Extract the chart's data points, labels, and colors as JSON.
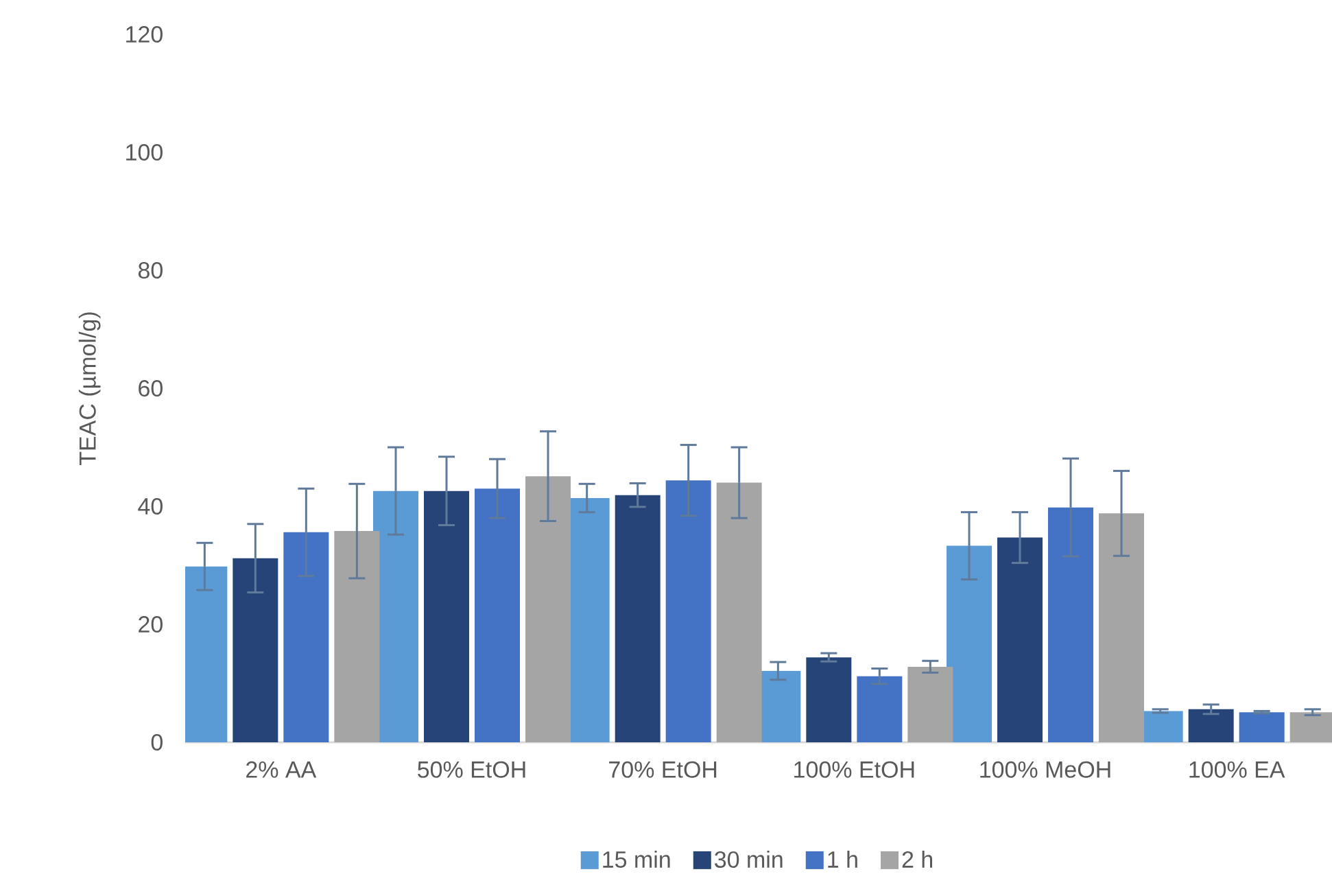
{
  "chart_data": {
    "type": "bar",
    "ylabel": "TEAC (µmol/g)",
    "categories": [
      "2% AA",
      "50% EtOH",
      "70% EtOH",
      "100% EtOH",
      "100% MeOH",
      "100% EA"
    ],
    "ylim": [
      0,
      120
    ],
    "yticks": [
      0,
      20,
      40,
      60,
      80,
      100,
      120
    ],
    "legend": "bottom",
    "series": [
      {
        "name": "15 min",
        "color": "#5b9bd5",
        "values": [
          29.8,
          42.6,
          41.4,
          12.1,
          33.3,
          5.3
        ],
        "errors": [
          4,
          7.4,
          2.4,
          1.5,
          5.7,
          0.3
        ]
      },
      {
        "name": "30 min",
        "color": "#264478",
        "values": [
          31.2,
          42.6,
          41.9,
          14.4,
          34.7,
          5.6
        ],
        "errors": [
          5.8,
          5.8,
          2,
          0.7,
          4.3,
          0.8
        ]
      },
      {
        "name": "1 h",
        "color": "#4472c4",
        "values": [
          35.6,
          43,
          44.4,
          11.2,
          39.8,
          5.1
        ],
        "errors": [
          7.4,
          5,
          6,
          1.3,
          8.3,
          0.2
        ]
      },
      {
        "name": "2 h",
        "color": "#a5a5a5",
        "values": [
          35.8,
          45.1,
          44,
          12.8,
          38.8,
          5.1
        ],
        "errors": [
          8,
          7.6,
          6,
          1,
          7.2,
          0.5
        ]
      }
    ]
  }
}
